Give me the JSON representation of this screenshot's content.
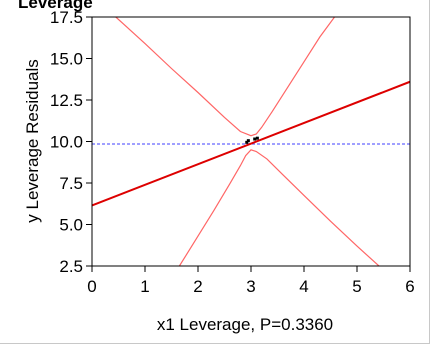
{
  "chart_data": {
    "type": "line",
    "title": "Leverage",
    "xlabel": "x1 Leverage, P=0.3360",
    "ylabel": "y Leverage Residuals",
    "xlim": [
      0,
      6
    ],
    "ylim": [
      2.5,
      17.5
    ],
    "x_ticks": [
      "0",
      "1",
      "2",
      "3",
      "4",
      "5",
      "6"
    ],
    "y_ticks": [
      "2.5",
      "5.0",
      "7.5",
      "10.0",
      "12.5",
      "15.0",
      "17.5"
    ],
    "grid": false,
    "colors": {
      "fit": "#dd0000",
      "confidence": "#ff6666",
      "mean": "#6666ff",
      "points": "#000000"
    },
    "fit_line": {
      "x": [
        0,
        6
      ],
      "y": [
        6.15,
        13.6
      ]
    },
    "mean_line": {
      "y": 9.85
    },
    "upper_confidence": {
      "x": [
        0.45,
        1.0,
        1.5,
        2.0,
        2.5,
        2.8,
        3.0,
        3.1,
        3.2,
        3.4,
        3.7,
        4.0,
        4.3,
        4.6
      ],
      "y": [
        17.5,
        15.9,
        14.4,
        12.95,
        11.45,
        10.6,
        10.35,
        10.45,
        10.85,
        11.8,
        13.3,
        14.8,
        16.3,
        17.6
      ]
    },
    "lower_confidence": {
      "x": [
        1.65,
        2.0,
        2.3,
        2.6,
        2.8,
        2.9,
        3.0,
        3.1,
        3.3,
        3.6,
        4.0,
        4.5,
        5.0,
        5.45
      ],
      "y": [
        2.5,
        4.3,
        5.85,
        7.45,
        8.55,
        9.15,
        9.5,
        9.4,
        8.95,
        8.0,
        6.75,
        5.2,
        3.7,
        2.4
      ]
    },
    "points": {
      "x": [
        2.92,
        2.95,
        3.07,
        3.12
      ],
      "y": [
        9.95,
        10.05,
        10.15,
        10.2
      ]
    }
  }
}
